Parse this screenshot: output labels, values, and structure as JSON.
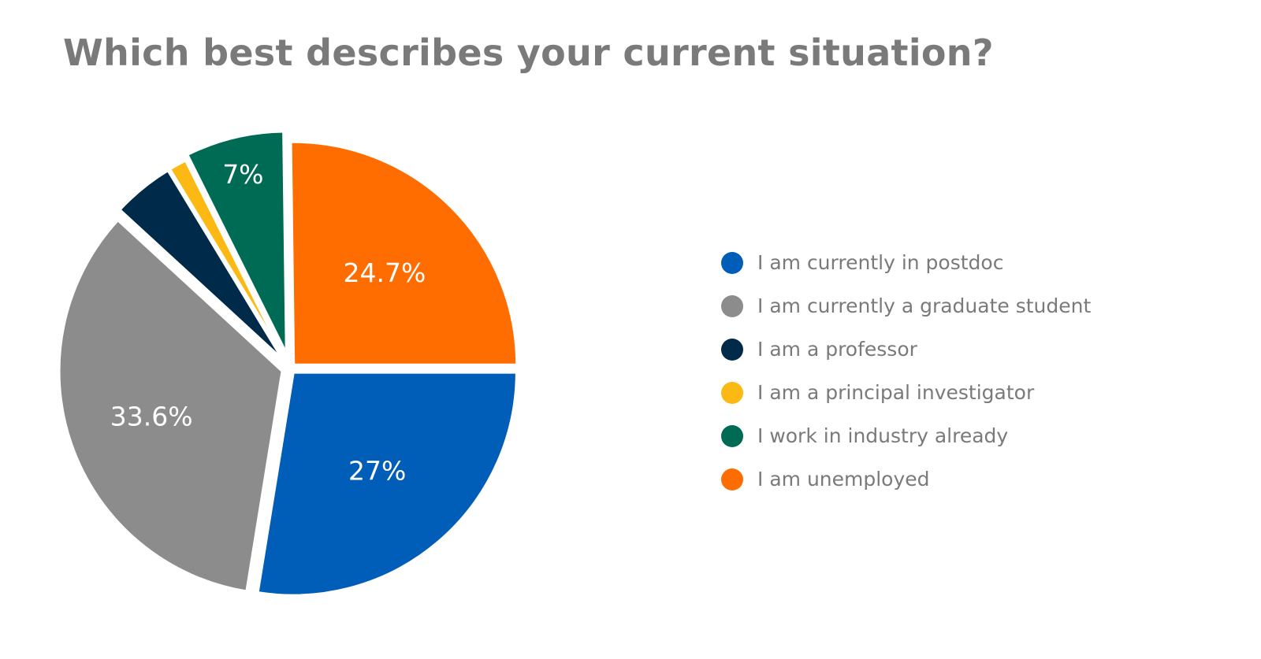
{
  "chart_data": {
    "type": "pie",
    "title": "Which best describes your current situation?",
    "slices": [
      {
        "name": "I am currently in postdoc",
        "value": 27.0,
        "label": "27%",
        "color": "#005EB8"
      },
      {
        "name": "I am currently a graduate student",
        "value": 33.6,
        "label": "33.6%",
        "color": "#8C8C8C"
      },
      {
        "name": "I am a professor",
        "value": 4.4,
        "label": "",
        "color": "#002A4A"
      },
      {
        "name": "I am a principal investigator",
        "value": 1.3,
        "label": "",
        "color": "#FDB913"
      },
      {
        "name": "I work in industry already",
        "value": 7.0,
        "label": "7%",
        "color": "#006B54"
      },
      {
        "name": "I am unemployed",
        "value": 24.7,
        "label": "24.7%",
        "color": "#FF6D00"
      }
    ],
    "legend_position": "right",
    "exploded": true
  }
}
